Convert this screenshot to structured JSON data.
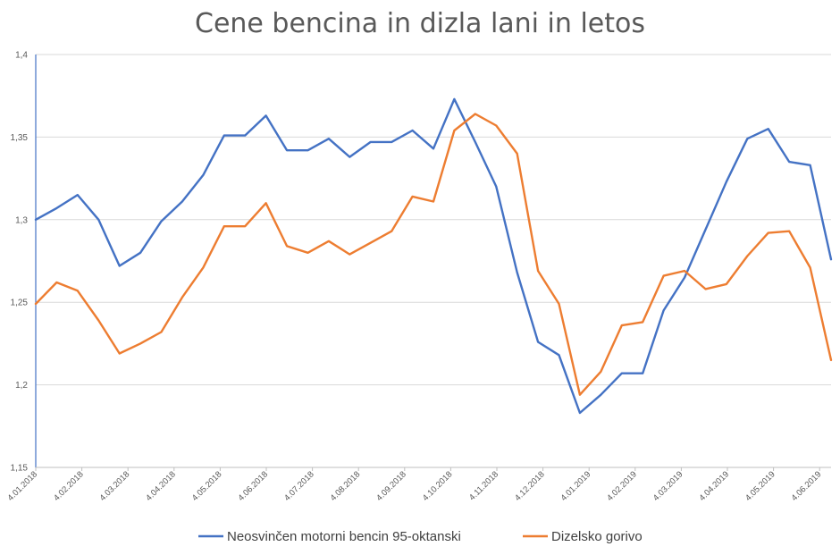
{
  "chart_data": {
    "type": "line",
    "title": "Cene bencina in dizla lani in letos",
    "xlabel": "",
    "ylabel": "",
    "ylim": [
      1.15,
      1.4
    ],
    "yticks": [
      1.15,
      1.2,
      1.25,
      1.3,
      1.35,
      1.4
    ],
    "ytick_labels": [
      "1,15",
      "1,2",
      "1,25",
      "1,3",
      "1,35",
      "1,4"
    ],
    "grid": true,
    "legend_position": "bottom",
    "x_tick_labels": [
      "4.01.2018",
      "4.02.2018",
      "4.03.2018",
      "4.04.2018",
      "4.05.2018",
      "4.06.2018",
      "4.07.2018",
      "4.08.2018",
      "4.09.2018",
      "4.10.2018",
      "4.11.2018",
      "4.12.2018",
      "4.01.2019",
      "4.02.2019",
      "4.03.2019",
      "4.04.2019",
      "4.05.2019",
      "4.06.2019"
    ],
    "points_count": 39,
    "series": [
      {
        "name": "Neosvinčen motorni bencin 95-oktanski",
        "color": "#4472C4",
        "values": [
          1.3,
          1.307,
          1.315,
          1.3,
          1.272,
          1.28,
          1.299,
          1.311,
          1.327,
          1.351,
          1.351,
          1.363,
          1.342,
          1.342,
          1.349,
          1.338,
          1.347,
          1.347,
          1.354,
          1.343,
          1.373,
          1.347,
          1.32,
          1.268,
          1.226,
          1.218,
          1.183,
          1.194,
          1.207,
          1.207,
          1.245,
          1.265,
          1.294,
          1.323,
          1.349,
          1.355,
          1.335,
          1.333,
          1.276
        ]
      },
      {
        "name": "Dizelsko gorivo",
        "color": "#ED7D31",
        "values": [
          1.249,
          1.262,
          1.257,
          1.239,
          1.219,
          1.225,
          1.232,
          1.253,
          1.271,
          1.296,
          1.296,
          1.31,
          1.284,
          1.28,
          1.287,
          1.279,
          1.286,
          1.293,
          1.314,
          1.311,
          1.354,
          1.364,
          1.357,
          1.34,
          1.269,
          1.249,
          1.194,
          1.208,
          1.236,
          1.238,
          1.266,
          1.269,
          1.258,
          1.261,
          1.278,
          1.292,
          1.293,
          1.271,
          1.215
        ]
      }
    ]
  }
}
